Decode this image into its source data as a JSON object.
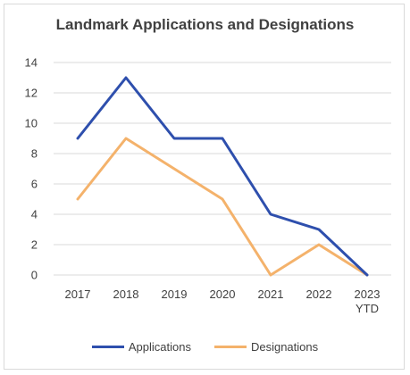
{
  "chart_data": {
    "type": "line",
    "title": "Landmark Applications and Designations",
    "xlabel": "",
    "ylabel": "",
    "categories": [
      "2017",
      "2018",
      "2019",
      "2020",
      "2021",
      "2022",
      "2023 YTD"
    ],
    "category_labels": [
      [
        "2017"
      ],
      [
        "2018"
      ],
      [
        "2019"
      ],
      [
        "2020"
      ],
      [
        "2021"
      ],
      [
        "2022"
      ],
      [
        "2023",
        "YTD"
      ]
    ],
    "ylim": [
      0,
      14
    ],
    "yticks": [
      0,
      2,
      4,
      6,
      8,
      10,
      12,
      14
    ],
    "grid": true,
    "legend_position": "bottom",
    "series": [
      {
        "name": "Applications",
        "color": "#2e4fad",
        "values": [
          9,
          13,
          9,
          9,
          4,
          3,
          0
        ]
      },
      {
        "name": "Designations",
        "color": "#f4b26b",
        "values": [
          5,
          9,
          7,
          5,
          0,
          2,
          0
        ]
      }
    ]
  }
}
